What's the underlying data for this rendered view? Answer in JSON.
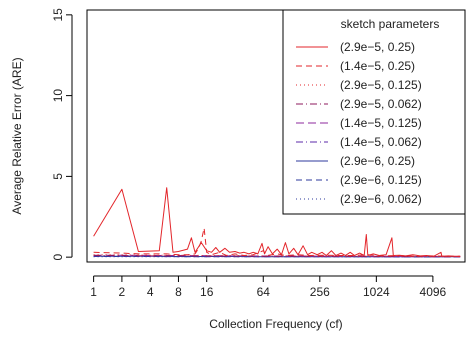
{
  "chart_data": {
    "type": "line",
    "title": "",
    "xlabel": "Collection Frequency (cf)",
    "ylabel": "Average Relative Error (ARE)",
    "x_scale": "log2",
    "xlim": [
      0.85,
      9000
    ],
    "ylim": [
      -0.3,
      15.3
    ],
    "x_ticks": [
      1,
      2,
      4,
      8,
      16,
      64,
      256,
      1024,
      4096
    ],
    "x_tick_labels": [
      "1",
      "2",
      "4",
      "8",
      "16",
      "64",
      "256",
      "1024",
      "4096"
    ],
    "y_ticks": [
      0,
      5,
      10,
      15
    ],
    "y_tick_labels": [
      "0",
      "5",
      "10",
      "15"
    ],
    "grid": false,
    "legend": {
      "title": "sketch parameters",
      "placement": "top-right"
    },
    "series": [
      {
        "name": "(2.9e−5, 0.25)",
        "color": "#e3262b",
        "dash": "solid",
        "points": [
          [
            1,
            1.3
          ],
          [
            2,
            4.2
          ],
          [
            3,
            0.35
          ],
          [
            5,
            0.4
          ],
          [
            6,
            4.3
          ],
          [
            7,
            0.3
          ],
          [
            8,
            0.35
          ],
          [
            10,
            0.5
          ],
          [
            11,
            1.2
          ],
          [
            12,
            0.3
          ],
          [
            14,
            0.9
          ],
          [
            16,
            0.4
          ],
          [
            18,
            0.3
          ],
          [
            20,
            0.6
          ],
          [
            22,
            0.3
          ],
          [
            25,
            0.55
          ],
          [
            28,
            0.3
          ],
          [
            32,
            0.35
          ],
          [
            36,
            0.25
          ],
          [
            40,
            0.3
          ],
          [
            45,
            0.2
          ],
          [
            50,
            0.3
          ],
          [
            56,
            0.2
          ],
          [
            62,
            0.85
          ],
          [
            66,
            0.2
          ],
          [
            72,
            0.65
          ],
          [
            80,
            0.2
          ],
          [
            90,
            0.5
          ],
          [
            100,
            0.15
          ],
          [
            110,
            0.9
          ],
          [
            120,
            0.2
          ],
          [
            135,
            0.55
          ],
          [
            150,
            0.15
          ],
          [
            170,
            0.7
          ],
          [
            190,
            0.15
          ],
          [
            210,
            0.3
          ],
          [
            240,
            0.15
          ],
          [
            270,
            0.3
          ],
          [
            300,
            0.1
          ],
          [
            340,
            0.4
          ],
          [
            380,
            0.1
          ],
          [
            430,
            0.25
          ],
          [
            480,
            0.1
          ],
          [
            540,
            0.3
          ],
          [
            600,
            0.1
          ],
          [
            680,
            0.25
          ],
          [
            760,
            0.1
          ],
          [
            800,
            1.4
          ],
          [
            830,
            0.1
          ],
          [
            950,
            0.2
          ],
          [
            1100,
            0.1
          ],
          [
            1300,
            0.15
          ],
          [
            1500,
            1.2
          ],
          [
            1550,
            0.1
          ],
          [
            1800,
            0.12
          ],
          [
            2100,
            0.08
          ],
          [
            2500,
            0.15
          ],
          [
            3000,
            0.08
          ],
          [
            3500,
            0.1
          ],
          [
            4200,
            0.06
          ],
          [
            5000,
            0.3
          ],
          [
            5100,
            0.06
          ],
          [
            6000,
            0.08
          ],
          [
            7000,
            0.06
          ],
          [
            8000,
            0.05
          ]
        ]
      },
      {
        "name": "(1.4e−5, 0.25)",
        "color": "#e3262b",
        "dash": "6,4",
        "points": [
          [
            1,
            0.3
          ],
          [
            2,
            0.25
          ],
          [
            3,
            0.2
          ],
          [
            4,
            0.2
          ],
          [
            6,
            0.2
          ],
          [
            8,
            0.15
          ],
          [
            10,
            0.15
          ],
          [
            12,
            0.2
          ],
          [
            13,
            0.5
          ],
          [
            14,
            1.0
          ],
          [
            15,
            1.8
          ],
          [
            16,
            0.3
          ],
          [
            18,
            0.15
          ],
          [
            22,
            0.3
          ],
          [
            26,
            0.1
          ],
          [
            32,
            0.2
          ],
          [
            40,
            0.1
          ],
          [
            50,
            0.15
          ],
          [
            64,
            0.4
          ],
          [
            70,
            0.1
          ],
          [
            90,
            0.2
          ],
          [
            110,
            0.1
          ],
          [
            150,
            0.15
          ],
          [
            200,
            0.1
          ],
          [
            300,
            0.12
          ],
          [
            400,
            0.1
          ],
          [
            600,
            0.1
          ],
          [
            800,
            0.15
          ],
          [
            1200,
            0.08
          ],
          [
            1800,
            0.1
          ],
          [
            2500,
            0.06
          ],
          [
            4000,
            0.08
          ],
          [
            6000,
            0.05
          ],
          [
            8000,
            0.05
          ]
        ]
      },
      {
        "name": "(2.9e−5, 0.125)",
        "color": "#e3262b",
        "dash": "1,3",
        "points": [
          [
            1,
            0.15
          ],
          [
            2,
            0.15
          ],
          [
            4,
            0.12
          ],
          [
            8,
            0.12
          ],
          [
            16,
            0.1
          ],
          [
            32,
            0.1
          ],
          [
            64,
            0.08
          ],
          [
            128,
            0.08
          ],
          [
            256,
            0.06
          ],
          [
            512,
            0.06
          ],
          [
            1024,
            0.05
          ],
          [
            2048,
            0.05
          ],
          [
            4096,
            0.04
          ],
          [
            8000,
            0.04
          ]
        ]
      },
      {
        "name": "(2.9e−5, 0.062)",
        "color": "#8e1a5e",
        "dash": "7,3,1,3",
        "points": [
          [
            1,
            0.1
          ],
          [
            2,
            0.1
          ],
          [
            4,
            0.08
          ],
          [
            8,
            0.08
          ],
          [
            16,
            0.07
          ],
          [
            32,
            0.07
          ],
          [
            64,
            0.06
          ],
          [
            128,
            0.06
          ],
          [
            256,
            0.05
          ],
          [
            512,
            0.05
          ],
          [
            1024,
            0.04
          ],
          [
            2048,
            0.04
          ],
          [
            4096,
            0.03
          ],
          [
            8000,
            0.03
          ]
        ]
      },
      {
        "name": "(1.4e−5, 0.125)",
        "color": "#8e2a9c",
        "dash": "8,4",
        "points": [
          [
            1,
            0.12
          ],
          [
            2,
            0.12
          ],
          [
            4,
            0.1
          ],
          [
            8,
            0.1
          ],
          [
            16,
            0.09
          ],
          [
            32,
            0.08
          ],
          [
            64,
            0.07
          ],
          [
            128,
            0.07
          ],
          [
            256,
            0.06
          ],
          [
            512,
            0.05
          ],
          [
            1024,
            0.05
          ],
          [
            2048,
            0.04
          ],
          [
            4096,
            0.04
          ],
          [
            8000,
            0.03
          ]
        ]
      },
      {
        "name": "(1.4e−5, 0.062)",
        "color": "#5b2aa8",
        "dash": "7,3,1,3",
        "points": [
          [
            1,
            0.08
          ],
          [
            2,
            0.08
          ],
          [
            4,
            0.07
          ],
          [
            8,
            0.07
          ],
          [
            16,
            0.06
          ],
          [
            32,
            0.06
          ],
          [
            64,
            0.05
          ],
          [
            128,
            0.05
          ],
          [
            256,
            0.04
          ],
          [
            512,
            0.04
          ],
          [
            1024,
            0.03
          ],
          [
            2048,
            0.03
          ],
          [
            4096,
            0.03
          ],
          [
            8000,
            0.02
          ]
        ]
      },
      {
        "name": "(2.9e−6, 0.25)",
        "color": "#2e3a9e",
        "dash": "solid",
        "points": [
          [
            1,
            0.05
          ],
          [
            2,
            0.05
          ],
          [
            4,
            0.05
          ],
          [
            8,
            0.04
          ],
          [
            16,
            0.04
          ],
          [
            32,
            0.04
          ],
          [
            64,
            0.03
          ],
          [
            128,
            0.03
          ],
          [
            256,
            0.03
          ],
          [
            512,
            0.02
          ],
          [
            1024,
            0.02
          ],
          [
            2048,
            0.02
          ],
          [
            4096,
            0.02
          ],
          [
            8000,
            0.02
          ]
        ]
      },
      {
        "name": "(2.9e−6, 0.125)",
        "color": "#2e3a9e",
        "dash": "6,4",
        "points": [
          [
            1,
            0.04
          ],
          [
            2,
            0.04
          ],
          [
            4,
            0.04
          ],
          [
            8,
            0.03
          ],
          [
            16,
            0.03
          ],
          [
            32,
            0.03
          ],
          [
            64,
            0.03
          ],
          [
            128,
            0.02
          ],
          [
            256,
            0.02
          ],
          [
            512,
            0.02
          ],
          [
            1024,
            0.02
          ],
          [
            2048,
            0.01
          ],
          [
            4096,
            0.01
          ],
          [
            8000,
            0.01
          ]
        ]
      },
      {
        "name": "(2.9e−6, 0.062)",
        "color": "#2e3a9e",
        "dash": "1,3",
        "points": [
          [
            1,
            0.03
          ],
          [
            2,
            0.03
          ],
          [
            4,
            0.03
          ],
          [
            8,
            0.03
          ],
          [
            16,
            0.02
          ],
          [
            32,
            0.02
          ],
          [
            64,
            0.02
          ],
          [
            128,
            0.02
          ],
          [
            256,
            0.02
          ],
          [
            512,
            0.01
          ],
          [
            1024,
            0.01
          ],
          [
            2048,
            0.01
          ],
          [
            4096,
            0.01
          ],
          [
            8000,
            0.01
          ]
        ]
      }
    ]
  }
}
